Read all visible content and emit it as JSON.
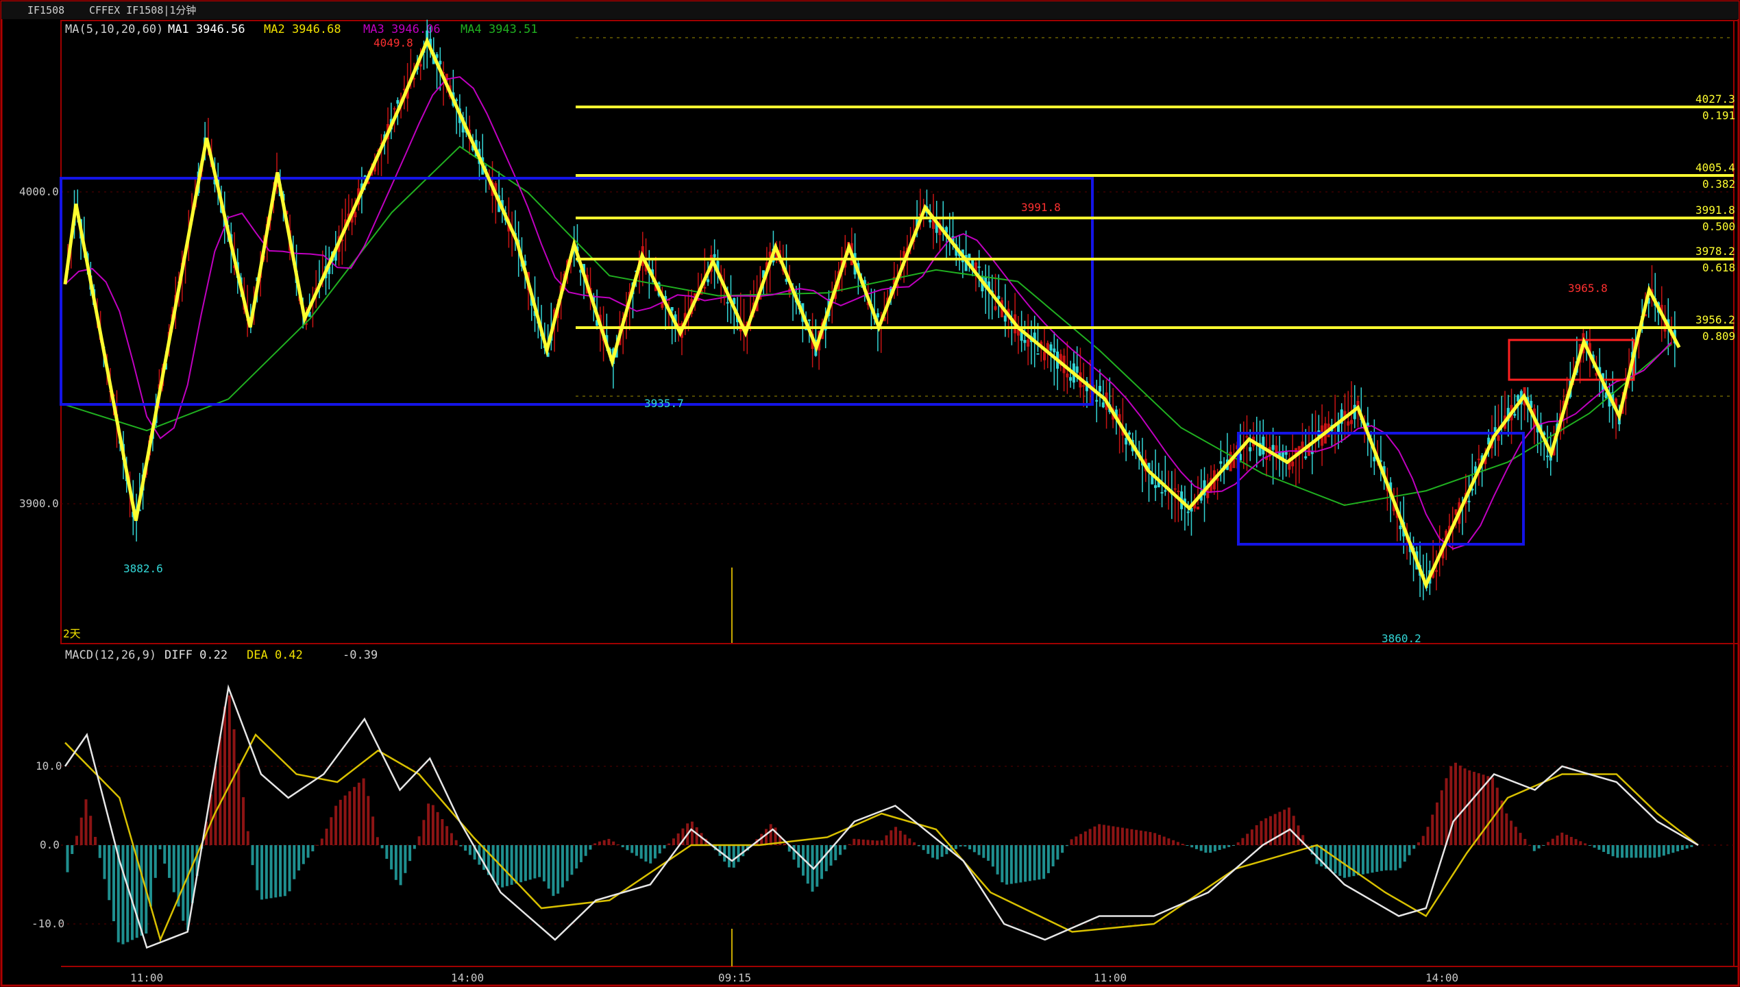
{
  "window": {
    "symbol": "IF1508",
    "title": "CFFEX IF1508|1分钟"
  },
  "colors": {
    "bg": "#000000",
    "frame": "#b00000",
    "up": "#c81414",
    "down": "#33d6d6",
    "ma1": "#ffffff",
    "ma2": "#f0e000",
    "ma3": "#c000c0",
    "ma4": "#20b020",
    "zigzag": "#ffff30",
    "fib": "#ffff30",
    "box_blue": "#1414e6",
    "box_red": "#ff2020",
    "macd_pos": "#8c1414",
    "macd_neg": "#1f8f8f",
    "diff": "#e6e6e6",
    "dea": "#d8c000"
  },
  "price_legend": {
    "title": "MA(5,10,20,60)",
    "ma1": "MA1 3946.56",
    "ma2": "MA2 3946.68",
    "ma3": "MA3 3946.06",
    "ma4": "MA4 3943.51"
  },
  "price_axis": {
    "ticks": [
      "4000.0",
      "3900.0"
    ]
  },
  "time_axis": {
    "ticks": [
      "11:00",
      "14:00",
      "09:15",
      "11:00",
      "14:00"
    ]
  },
  "period_label": "2天",
  "price_annotations": {
    "high": "4049.8",
    "low_left": "3882.6",
    "mid_low": "3935.7",
    "mid_high": "3991.8",
    "low_right": "3860.2",
    "right_high": "3965.8"
  },
  "fib_levels": [
    {
      "price": "4027.3",
      "ratio": "0.191"
    },
    {
      "price": "4005.4",
      "ratio": "0.382"
    },
    {
      "price": "3991.8",
      "ratio": "0.500"
    },
    {
      "price": "3978.2",
      "ratio": "0.618"
    },
    {
      "price": "3956.2",
      "ratio": "0.809"
    }
  ],
  "macd_legend": {
    "title": "MACD(12,26,9)",
    "diff": "DIFF  0.22",
    "dea": "DEA  0.42",
    "macd": "-0.39"
  },
  "macd_axis": {
    "ticks": [
      "10.0",
      "0.0",
      "-10.0"
    ]
  },
  "chart_data": {
    "type": "line",
    "title": "CFFEX IF1508|1分钟",
    "price_range": [
      3840,
      4055
    ],
    "zigzag_price": [
      [
        0,
        3965
      ],
      [
        0.4,
        3993
      ],
      [
        2.6,
        3882.6
      ],
      [
        5.2,
        4016
      ],
      [
        6.8,
        3950
      ],
      [
        7.8,
        4004
      ],
      [
        8.8,
        3953
      ],
      [
        12.3,
        4027
      ],
      [
        13.3,
        4049.8
      ],
      [
        16.6,
        3980
      ],
      [
        17.7,
        3942
      ],
      [
        18.7,
        3979
      ],
      [
        20.1,
        3938
      ],
      [
        21.2,
        3975
      ],
      [
        22.6,
        3948
      ],
      [
        23.8,
        3973
      ],
      [
        25.0,
        3948
      ],
      [
        26.1,
        3978
      ],
      [
        27.6,
        3943
      ],
      [
        28.8,
        3978
      ],
      [
        29.9,
        3950
      ],
      [
        31.6,
        3991.8
      ],
      [
        35.0,
        3950
      ],
      [
        38.2,
        3925
      ],
      [
        39.8,
        3900
      ],
      [
        41.3,
        3887
      ],
      [
        43.5,
        3911
      ],
      [
        44.9,
        3903
      ],
      [
        47.5,
        3922
      ],
      [
        50.0,
        3860.2
      ],
      [
        52.5,
        3912
      ],
      [
        53.6,
        3926
      ],
      [
        54.6,
        3906
      ],
      [
        55.8,
        3945
      ],
      [
        57.1,
        3919
      ],
      [
        58.2,
        3963
      ],
      [
        59.3,
        3943
      ]
    ],
    "ma4_price": [
      [
        0,
        3923
      ],
      [
        3,
        3914
      ],
      [
        6,
        3925
      ],
      [
        9,
        3953
      ],
      [
        12,
        3990
      ],
      [
        14.5,
        4013
      ],
      [
        17,
        3997
      ],
      [
        20,
        3968
      ],
      [
        24,
        3961
      ],
      [
        28,
        3962
      ],
      [
        32,
        3970
      ],
      [
        35,
        3966
      ],
      [
        38,
        3942
      ],
      [
        41,
        3915
      ],
      [
        44,
        3899
      ],
      [
        47,
        3888
      ],
      [
        50,
        3893
      ],
      [
        53,
        3903
      ],
      [
        56,
        3920
      ],
      [
        59,
        3944
      ]
    ],
    "macd": {
      "diff": [
        [
          0,
          10
        ],
        [
          0.8,
          14
        ],
        [
          2.0,
          -2
        ],
        [
          3.0,
          -13
        ],
        [
          4.5,
          -11
        ],
        [
          6.0,
          20
        ],
        [
          7.2,
          9
        ],
        [
          8.2,
          6
        ],
        [
          9.5,
          9
        ],
        [
          11.0,
          16
        ],
        [
          12.3,
          7
        ],
        [
          13.4,
          11
        ],
        [
          14.5,
          3
        ],
        [
          16.0,
          -6
        ],
        [
          18.0,
          -12
        ],
        [
          19.5,
          -7
        ],
        [
          21.5,
          -5
        ],
        [
          23.0,
          2
        ],
        [
          24.5,
          -2
        ],
        [
          26.0,
          2
        ],
        [
          27.5,
          -3
        ],
        [
          29.0,
          3
        ],
        [
          30.5,
          5
        ],
        [
          33.0,
          -2
        ],
        [
          34.5,
          -10
        ],
        [
          36.0,
          -12
        ],
        [
          38.0,
          -9
        ],
        [
          40.0,
          -9
        ],
        [
          42.0,
          -6
        ],
        [
          44.0,
          0
        ],
        [
          45.0,
          2
        ],
        [
          47.0,
          -5
        ],
        [
          49.0,
          -9
        ],
        [
          50.0,
          -8
        ],
        [
          51.0,
          3
        ],
        [
          52.5,
          9
        ],
        [
          54.0,
          7
        ],
        [
          55.0,
          10
        ],
        [
          57.0,
          8
        ],
        [
          58.5,
          3
        ],
        [
          60.0,
          0
        ]
      ],
      "dea": [
        [
          0,
          13
        ],
        [
          2.0,
          6
        ],
        [
          3.5,
          -12
        ],
        [
          5.5,
          4
        ],
        [
          7.0,
          14
        ],
        [
          8.5,
          9
        ],
        [
          10.0,
          8
        ],
        [
          11.5,
          12
        ],
        [
          13.0,
          9
        ],
        [
          15.0,
          1
        ],
        [
          17.5,
          -8
        ],
        [
          20.0,
          -7
        ],
        [
          23.0,
          0
        ],
        [
          25.5,
          0
        ],
        [
          28.0,
          1
        ],
        [
          30.0,
          4
        ],
        [
          32.0,
          2
        ],
        [
          34.0,
          -6
        ],
        [
          37.0,
          -11
        ],
        [
          40.0,
          -10
        ],
        [
          43.0,
          -3
        ],
        [
          46.0,
          0
        ],
        [
          48.5,
          -6
        ],
        [
          50.0,
          -9
        ],
        [
          51.5,
          -1
        ],
        [
          53.0,
          6
        ],
        [
          55.0,
          9
        ],
        [
          57.0,
          9
        ],
        [
          58.5,
          4
        ],
        [
          60.0,
          0
        ]
      ]
    }
  }
}
